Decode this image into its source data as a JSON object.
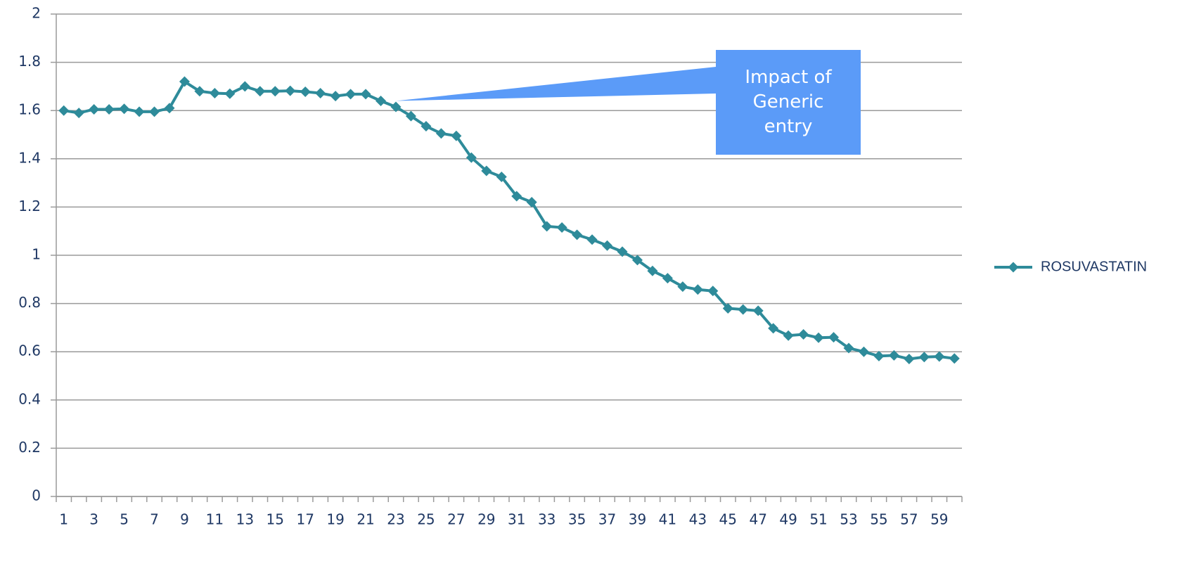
{
  "chart_data": {
    "type": "line",
    "categories": [
      "1",
      null,
      "3",
      null,
      "5",
      null,
      "7",
      null,
      "9",
      null,
      "11",
      null,
      "13",
      null,
      "15",
      null,
      "17",
      null,
      "19",
      null,
      "21",
      null,
      "23",
      null,
      "25",
      null,
      "27",
      null,
      "29",
      null,
      "31",
      null,
      "33",
      null,
      "35",
      null,
      "37",
      null,
      "39",
      null,
      "41",
      null,
      "43",
      null,
      "45",
      null,
      "47",
      null,
      "49",
      null,
      "51",
      null,
      "53",
      null,
      "55",
      null,
      "57",
      null,
      "59",
      null
    ],
    "series": [
      {
        "name": "ROSUVASTATIN",
        "color": "#2e8b9a",
        "values": [
          1.6,
          1.59,
          1.605,
          1.605,
          1.607,
          1.595,
          1.595,
          1.61,
          1.72,
          1.68,
          1.672,
          1.67,
          1.7,
          1.68,
          1.68,
          1.682,
          1.678,
          1.672,
          1.66,
          1.668,
          1.668,
          1.64,
          1.615,
          1.577,
          1.535,
          1.505,
          1.495,
          1.405,
          1.35,
          1.325,
          1.245,
          1.22,
          1.12,
          1.115,
          1.085,
          1.065,
          1.04,
          1.015,
          0.98,
          0.935,
          0.905,
          0.87,
          0.858,
          0.852,
          0.78,
          0.775,
          0.77,
          0.697,
          0.667,
          0.672,
          0.658,
          0.66,
          0.615,
          0.6,
          0.582,
          0.585,
          0.57,
          0.578,
          0.58,
          0.572
        ]
      }
    ],
    "ylim": [
      0,
      2
    ],
    "yticks": [
      0,
      0.2,
      0.4,
      0.6,
      0.8,
      1,
      1.2,
      1.4,
      1.6,
      1.8,
      2
    ],
    "grid": true,
    "legend": "right",
    "annotation": "Impact of Generic entry"
  }
}
